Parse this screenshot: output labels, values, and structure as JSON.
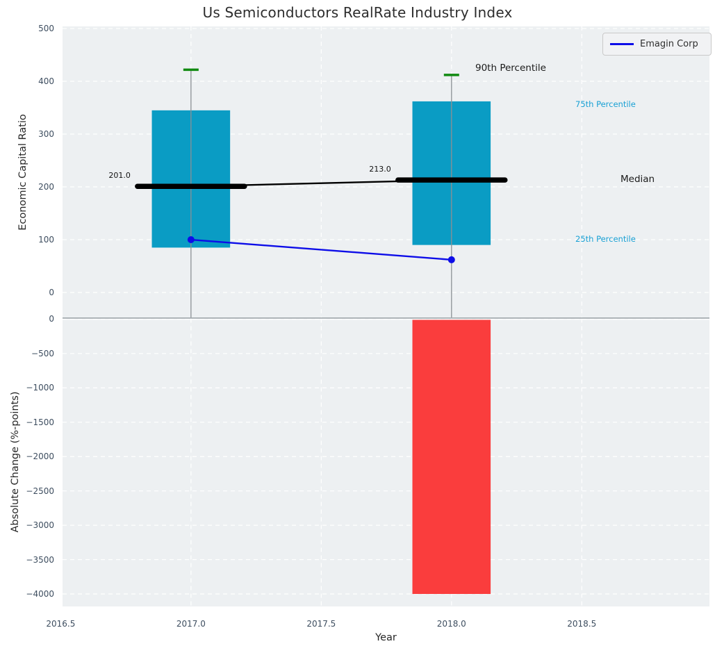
{
  "title": "Us Semiconductors RealRate Industry Index",
  "legend": {
    "entries": [
      {
        "label": "Emagin Corp",
        "color": "#0d0de8"
      }
    ],
    "position": "upper-right"
  },
  "colors": {
    "iqr_band": "#0a9cc4",
    "percentile_text": "#18a0d4",
    "p90_cap": "#118a11",
    "median_line": "#000000",
    "emagin_line": "#0d0de8",
    "decline_bar": "#fa3d3d",
    "whisker_line": "#8b9094",
    "grid_line": "#ffffff",
    "axes_background": "#edf0f2",
    "tick_text": "#3d4d5f"
  },
  "chart_data": {
    "type": "combo",
    "title": "Us Semiconductors RealRate Industry Index",
    "xlabel": "Year",
    "xlim": [
      2016.507,
      2018.99
    ],
    "xticks": [
      {
        "value": 2016.5,
        "label": "2016.5"
      },
      {
        "value": 2017.0,
        "label": "2017.0"
      },
      {
        "value": 2017.5,
        "label": "2017.5"
      },
      {
        "value": 2018.0,
        "label": "2018.0"
      },
      {
        "value": 2018.5,
        "label": "2018.5"
      }
    ],
    "grid": true,
    "top": {
      "type": "percentile-bands-with-line",
      "ylabel": "Economic Capital Ratio",
      "ylim": [
        -48,
        504
      ],
      "yticks": [
        500,
        400,
        300,
        200,
        100,
        0
      ],
      "bands": [
        {
          "x": 2017,
          "p25": 85,
          "p75": 345,
          "p90": 422,
          "median": 201,
          "median_label": "201.0"
        },
        {
          "x": 2018,
          "p25": 90,
          "p75": 362,
          "p90": 412,
          "median": 213,
          "median_label": "213.0"
        }
      ],
      "line_series": {
        "name": "Emagin Corp",
        "x": [
          2017,
          2018
        ],
        "y": [
          100,
          62
        ]
      },
      "annotations": [
        {
          "text": "90th Percentile",
          "tone": "dark"
        },
        {
          "text": "75th Percentile",
          "tone": "accent"
        },
        {
          "text": "Median",
          "tone": "dark"
        },
        {
          "text": "25th Percentile",
          "tone": "accent"
        }
      ]
    },
    "bottom": {
      "type": "bar",
      "ylabel": "Absolute Change (%-points)",
      "ylim": [
        -4182,
        10
      ],
      "yticks": [
        0,
        -500,
        -1000,
        -1500,
        -2000,
        -2500,
        -3000,
        -3500,
        -4000
      ],
      "bars": [
        {
          "x": 2018,
          "value": -4000
        }
      ]
    }
  }
}
